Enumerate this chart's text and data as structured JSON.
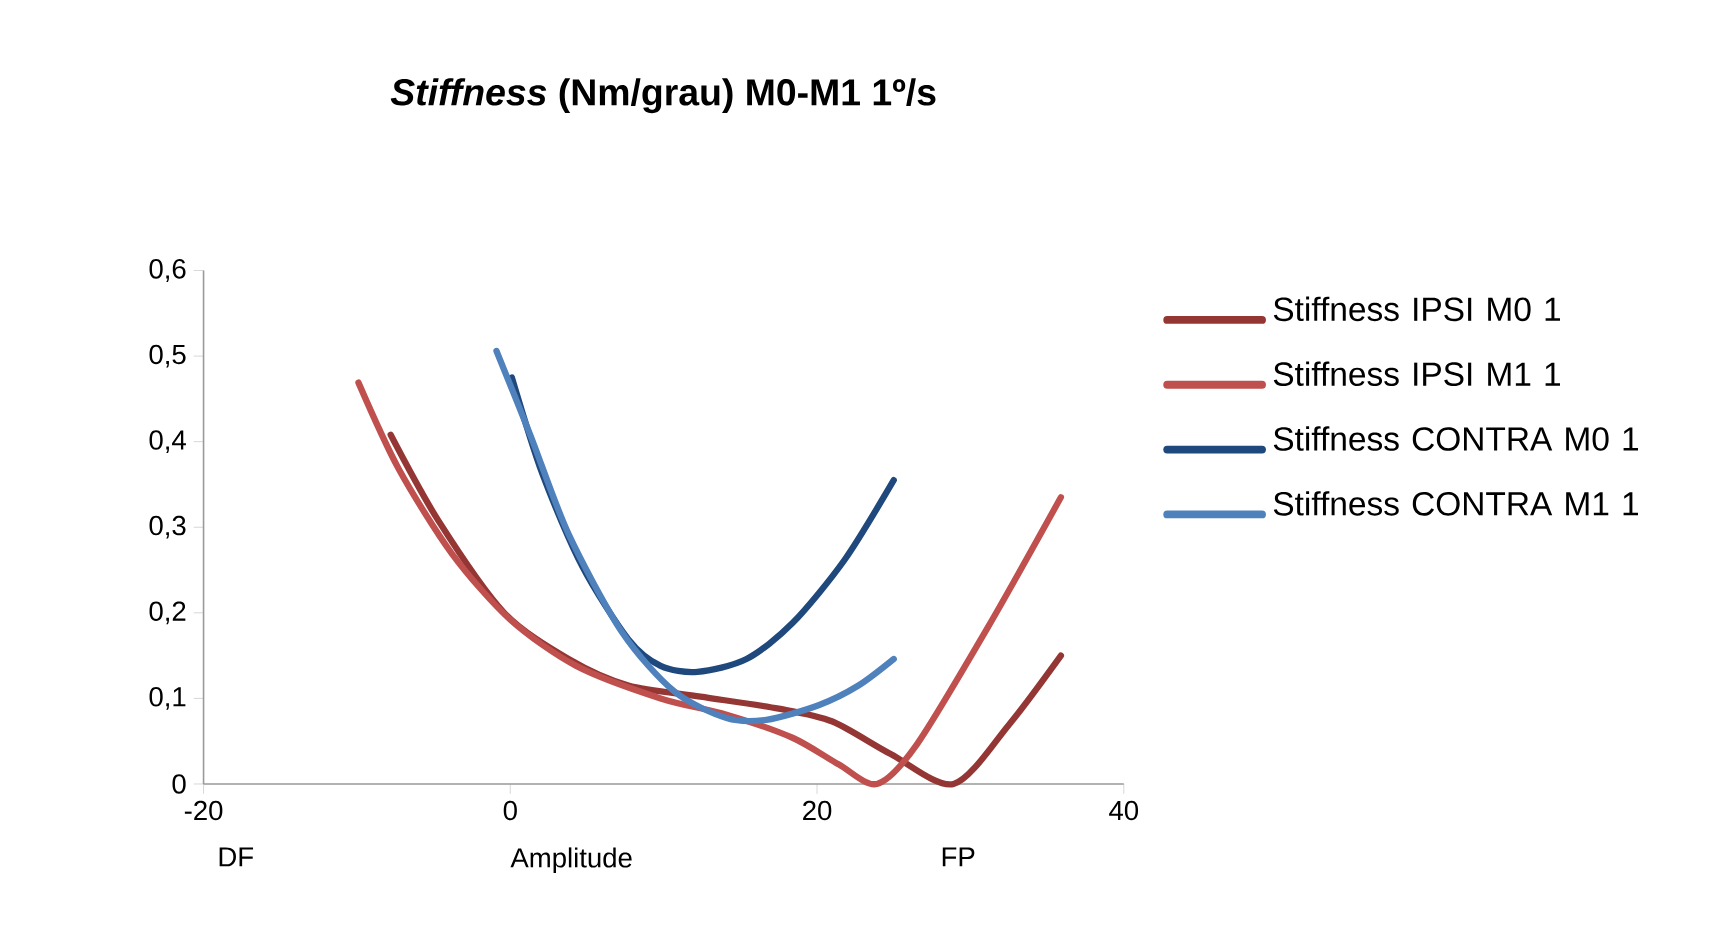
{
  "chart_data": {
    "type": "line",
    "title": "*Stiffness* (Nm/grau) M0-M1 1º/s",
    "xlabel": "Amplitude",
    "annotations": [
      "DF",
      "FP"
    ],
    "series": [
      {
        "name": "Stiffness IPSI M0 1",
        "color": "#943634",
        "x": [
          -7.8,
          -4.7,
          -0.4,
          3.8,
          7.7,
          12.4,
          17.5,
          21,
          24.8,
          28.9,
          32.5,
          35.9
        ],
        "values": [
          0.408,
          0.308,
          0.2,
          0.146,
          0.115,
          0.102,
          0.088,
          0.073,
          0.035,
          0,
          0.069,
          0.15
        ]
      },
      {
        "name": "Stiffness IPSI M1 1",
        "color": "#c0504d",
        "x": [
          -9.9,
          -7.3,
          -3.8,
          0,
          4.3,
          9.8,
          14.1,
          18.4,
          21.4,
          23.9,
          26.5,
          31.2,
          35.9
        ],
        "values": [
          0.469,
          0.369,
          0.269,
          0.192,
          0.138,
          0.1,
          0.081,
          0.054,
          0.023,
          0,
          0.046,
          0.185,
          0.335
        ]
      },
      {
        "name": "Stiffness CONTRA M0 1",
        "color": "#1f497d",
        "x": [
          0.1,
          2.1,
          4.7,
          7.7,
          9.8,
          12.2,
          15.4,
          18.4,
          21.8,
          25
        ],
        "values": [
          0.475,
          0.362,
          0.254,
          0.169,
          0.138,
          0.131,
          0.146,
          0.188,
          0.262,
          0.355
        ]
      },
      {
        "name": "Stiffness CONTRA M1 1",
        "color": "#4f81bd",
        "x": [
          -0.9,
          1.3,
          3.8,
          7.3,
          10.7,
          14.1,
          16.7,
          20.1,
          22.7,
          25
        ],
        "values": [
          0.506,
          0.408,
          0.292,
          0.177,
          0.108,
          0.077,
          0.075,
          0.092,
          0.115,
          0.146
        ]
      }
    ],
    "xlim": [
      -20,
      40
    ],
    "ylim": [
      0,
      0.6
    ],
    "xticks": [
      -20,
      0,
      20,
      40
    ],
    "yticks": [
      0,
      {
        "value": 0.1,
        "label": "0,1"
      },
      {
        "value": 0.2,
        "label": "0,2"
      },
      {
        "value": 0.3,
        "label": "0,3"
      },
      {
        "value": 0.4,
        "label": "0,4"
      },
      {
        "value": 0.5,
        "label": "0,5"
      },
      {
        "value": 0.6,
        "label": "0,6"
      }
    ],
    "grid": false,
    "legend": "right",
    "marker": "none",
    "line_style": "solid"
  }
}
